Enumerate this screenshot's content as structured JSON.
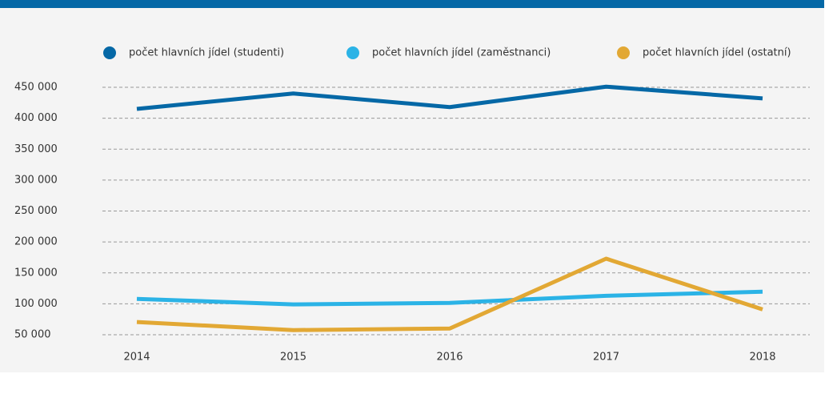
{
  "chart_data": {
    "type": "line",
    "categories": [
      "2014",
      "2015",
      "2016",
      "2017",
      "2018"
    ],
    "series": [
      {
        "name": "počet hlavních jídel (studenti)",
        "color": "#0568a6",
        "values": [
          415000,
          440000,
          418000,
          451000,
          432000
        ]
      },
      {
        "name": "počet hlavních jídel (zaměstnanci)",
        "color": "#2bb3e6",
        "values": [
          108000,
          99000,
          101500,
          113000,
          119500
        ]
      },
      {
        "name": "počet hlavních jídel (ostatní)",
        "color": "#e2a834",
        "values": [
          70500,
          57500,
          60000,
          173000,
          91000
        ]
      }
    ],
    "ylim": [
      50000,
      450000
    ],
    "yticks": [
      {
        "value": 50000,
        "label": "50 000"
      },
      {
        "value": 100000,
        "label": "100 000"
      },
      {
        "value": 150000,
        "label": "150 000"
      },
      {
        "value": 200000,
        "label": "200 000"
      },
      {
        "value": 250000,
        "label": "250 000"
      },
      {
        "value": 300000,
        "label": "300 000"
      },
      {
        "value": 350000,
        "label": "350 000"
      },
      {
        "value": 400000,
        "label": "400 000"
      },
      {
        "value": 450000,
        "label": "450 000"
      }
    ],
    "grid": true,
    "legend": "top"
  }
}
